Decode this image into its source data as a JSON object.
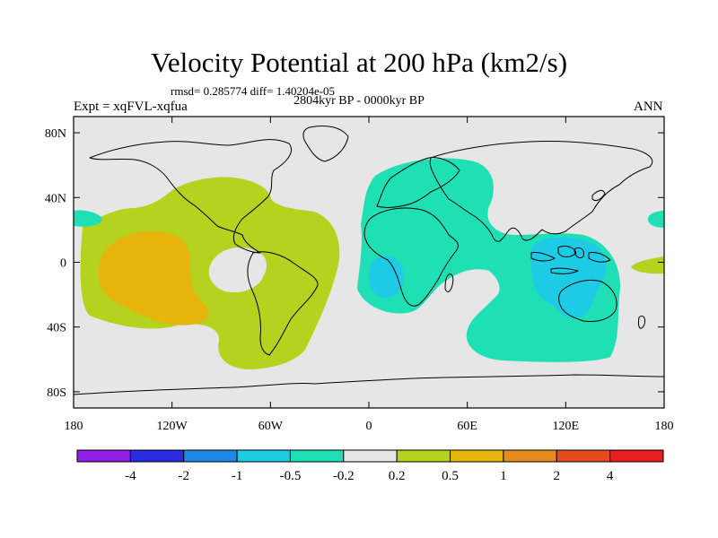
{
  "title": "Velocity Potential at 200 hPa (km2/s)",
  "stats": "rmsd= 0.285774 diff= 1.40204e-05",
  "period": "2804kyr BP - 0000kyr BP",
  "experiment": "Expt = xqFVL-xqfua",
  "season": "ANN",
  "chart_data": {
    "type": "heatmap",
    "projection": "cylindrical-equidistant",
    "variable": "Velocity Potential at 200 hPa",
    "units": "km2/s",
    "lon_range": [
      -180,
      180
    ],
    "lat_range": [
      -90,
      90
    ],
    "x_ticks": [
      {
        "lon": -180,
        "label": "180"
      },
      {
        "lon": -120,
        "label": "120W"
      },
      {
        "lon": -60,
        "label": "60W"
      },
      {
        "lon": 0,
        "label": "0"
      },
      {
        "lon": 60,
        "label": "60E"
      },
      {
        "lon": 120,
        "label": "120E"
      },
      {
        "lon": 180,
        "label": "180"
      }
    ],
    "y_ticks": [
      {
        "lat": 80,
        "label": "80N"
      },
      {
        "lat": 40,
        "label": "40N"
      },
      {
        "lat": 0,
        "label": "0"
      },
      {
        "lat": -40,
        "label": "40S"
      },
      {
        "lat": -80,
        "label": "80S"
      }
    ],
    "colorbar": {
      "bins": [
        {
          "color": "#8f1ee6"
        },
        {
          "color": "#2a2ae0"
        },
        {
          "color": "#1e88e6"
        },
        {
          "color": "#1ecbe6"
        },
        {
          "color": "#1ee0b4"
        },
        {
          "color": "#e6e6e6"
        },
        {
          "color": "#b4d21e"
        },
        {
          "color": "#e6b40a"
        },
        {
          "color": "#e68a1e"
        },
        {
          "color": "#e64b1e"
        },
        {
          "color": "#e61e1e"
        }
      ],
      "labels": [
        "-4",
        "-2",
        "-1",
        "-0.5",
        "-0.2",
        "0.2",
        "0.5",
        "1",
        "2",
        "4"
      ]
    },
    "regions": [
      {
        "name": "east-pacific-positive",
        "level": "0.2 to 0.5",
        "color": "#b4d21e",
        "center_lon": -120,
        "center_lat": 0
      },
      {
        "name": "east-pacific-maximum",
        "level": "0.5 to 1",
        "color": "#e6b40a",
        "center_lon": -130,
        "center_lat": -5
      },
      {
        "name": "africa-indian-negative",
        "level": "-0.5 to -0.2",
        "color": "#1ee0b4",
        "center_lon": 60,
        "center_lat": 10
      },
      {
        "name": "africa-minimum",
        "level": "-1 to -0.5",
        "color": "#1ecbe6",
        "center_lon": 15,
        "center_lat": -5
      },
      {
        "name": "maritime-continent-minimum",
        "level": "-1 to -0.5",
        "color": "#1ecbe6",
        "center_lon": 120,
        "center_lat": -5
      },
      {
        "name": "west-pacific-edge-negative",
        "level": "-0.5 to -0.2",
        "color": "#1ee0b4",
        "center_lon": -175,
        "center_lat": 25
      },
      {
        "name": "dateline-edge-positive",
        "level": "0.2 to 0.5",
        "color": "#b4d21e",
        "center_lon": 175,
        "center_lat": -2
      }
    ]
  }
}
